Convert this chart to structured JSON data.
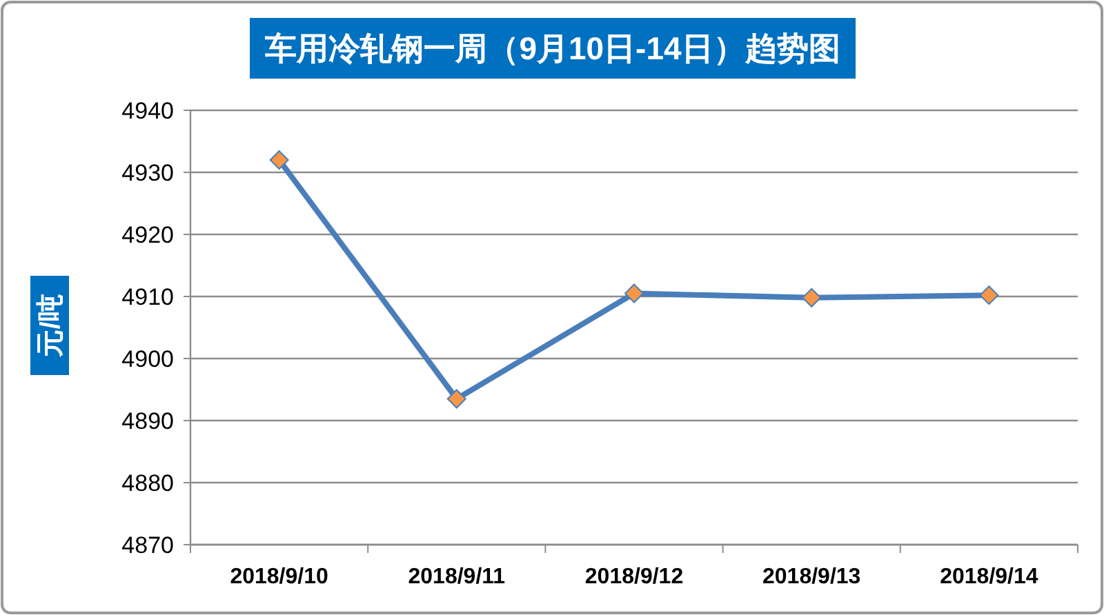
{
  "chart_data": {
    "type": "line",
    "title": "车用冷轧钢一周（9月10日-14日）趋势图",
    "ylabel": "元/吨",
    "categories": [
      "2018/9/10",
      "2018/9/11",
      "2018/9/12",
      "2018/9/13",
      "2018/9/14"
    ],
    "series": [
      {
        "color": "#4a7ebb",
        "values": [
          4932,
          4893.5,
          4910.5,
          4909.8,
          4910.2
        ]
      }
    ],
    "ylim": [
      4870,
      4940
    ],
    "yticks": [
      4870,
      4880,
      4890,
      4900,
      4910,
      4920,
      4930,
      4940
    ],
    "grid": "y",
    "marker": "diamond",
    "line_style": "solid"
  }
}
